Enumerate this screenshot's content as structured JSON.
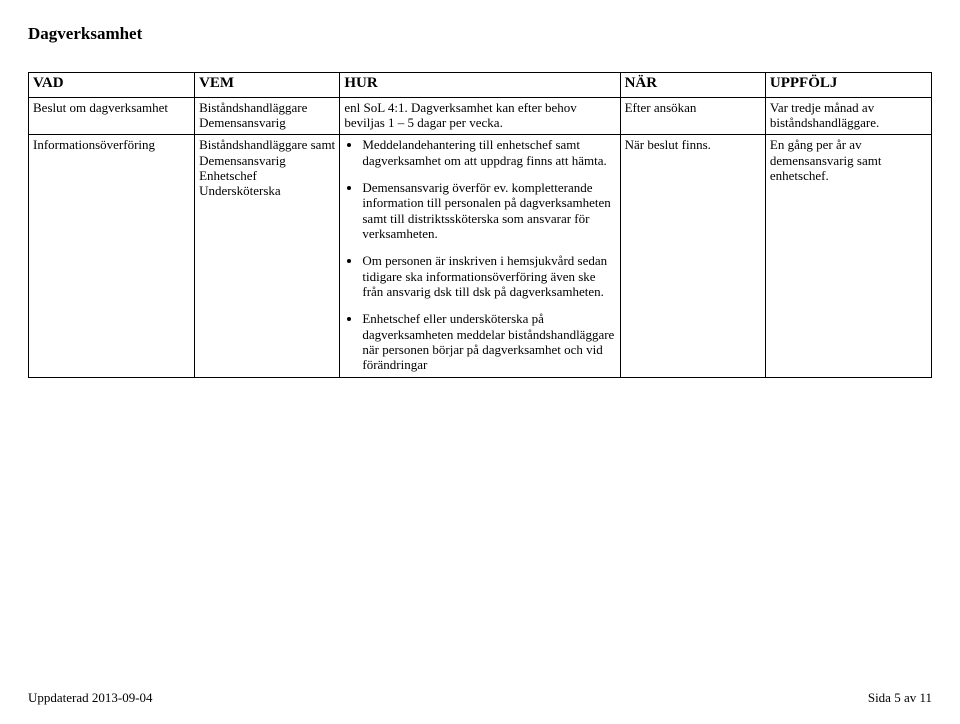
{
  "page_title": "Dagverksamhet",
  "headers": {
    "vad": "VAD",
    "vem": "VEM",
    "hur": "HUR",
    "nar": "NÄR",
    "uppfolj": "UPPFÖLJ"
  },
  "rows": [
    {
      "vad": "Beslut om dagverksamhet",
      "vem": "Biståndshandläggare Demensansvarig",
      "hur_plain": "enl SoL 4:1. Dagverksamhet kan efter behov beviljas 1 – 5 dagar per vecka.",
      "nar": "Efter ansökan",
      "uppfolj": "Var tredje månad av biståndshandläggare."
    },
    {
      "vad": "Informationsöverföring",
      "vem": "Biståndshandläggare samt Demensansvarig Enhetschef Undersköterska",
      "hur_bullets": [
        "Meddelandehantering till enhetschef samt dagverksamhet om att uppdrag finns att hämta.",
        "Demensansvarig överför ev. kompletterande information till personalen på dagverksamheten samt till distriktssköterska som ansvarar för verksamheten.",
        "Om personen är inskriven i hemsjukvård sedan tidigare ska informationsöverföring även ske från ansvarig dsk till dsk på dagverksamheten.",
        "Enhetschef eller undersköterska på dagverksamheten meddelar biståndshandläggare när personen börjar på dagverksamhet och vid förändringar"
      ],
      "nar": "När beslut finns.",
      "uppfolj": "En gång per år av demensansvarig samt enhetschef."
    }
  ],
  "footer": {
    "left": "Uppdaterad 2013-09-04",
    "right": "Sida 5 av 11"
  }
}
